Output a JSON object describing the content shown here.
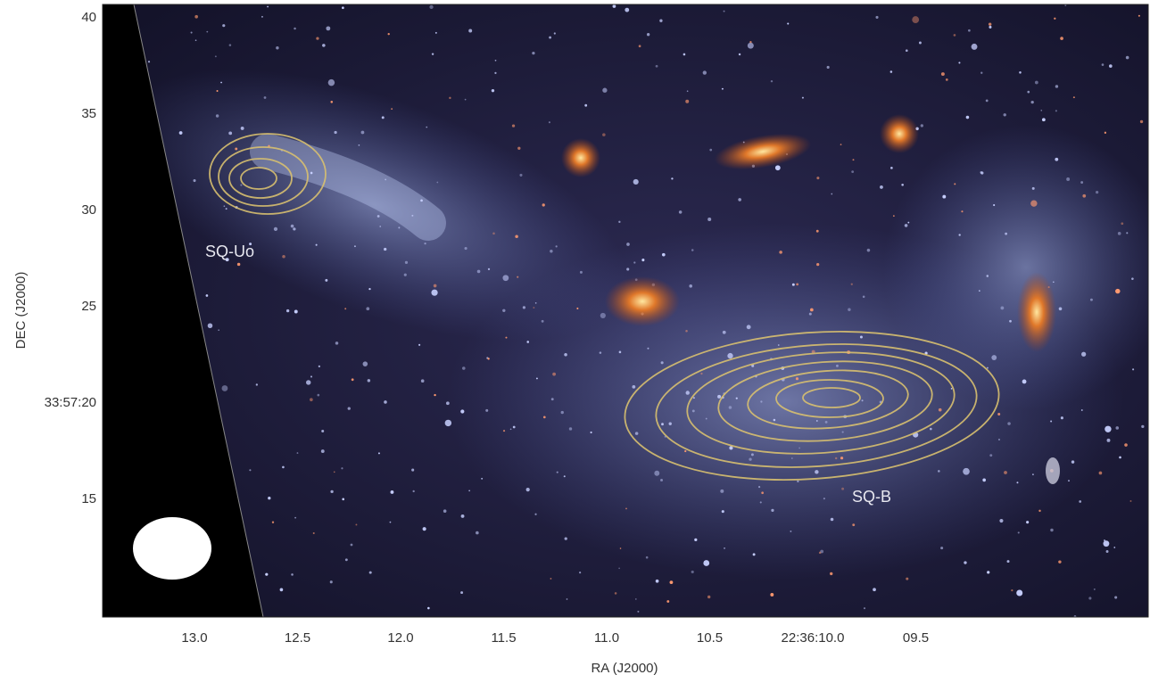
{
  "figure": {
    "x_axis": {
      "label": "RA (J2000)",
      "ticks": [
        "13.0",
        "12.5",
        "12.0",
        "11.5",
        "11.0",
        "10.5",
        "22:36:10.0",
        "09.5"
      ]
    },
    "y_axis": {
      "label": "DEC (J2000)",
      "ticks": [
        "40",
        "35",
        "30",
        "25",
        "33:57:20",
        "15"
      ]
    },
    "annotations": [
      "SQ-Uo",
      "SQ-B"
    ]
  }
}
